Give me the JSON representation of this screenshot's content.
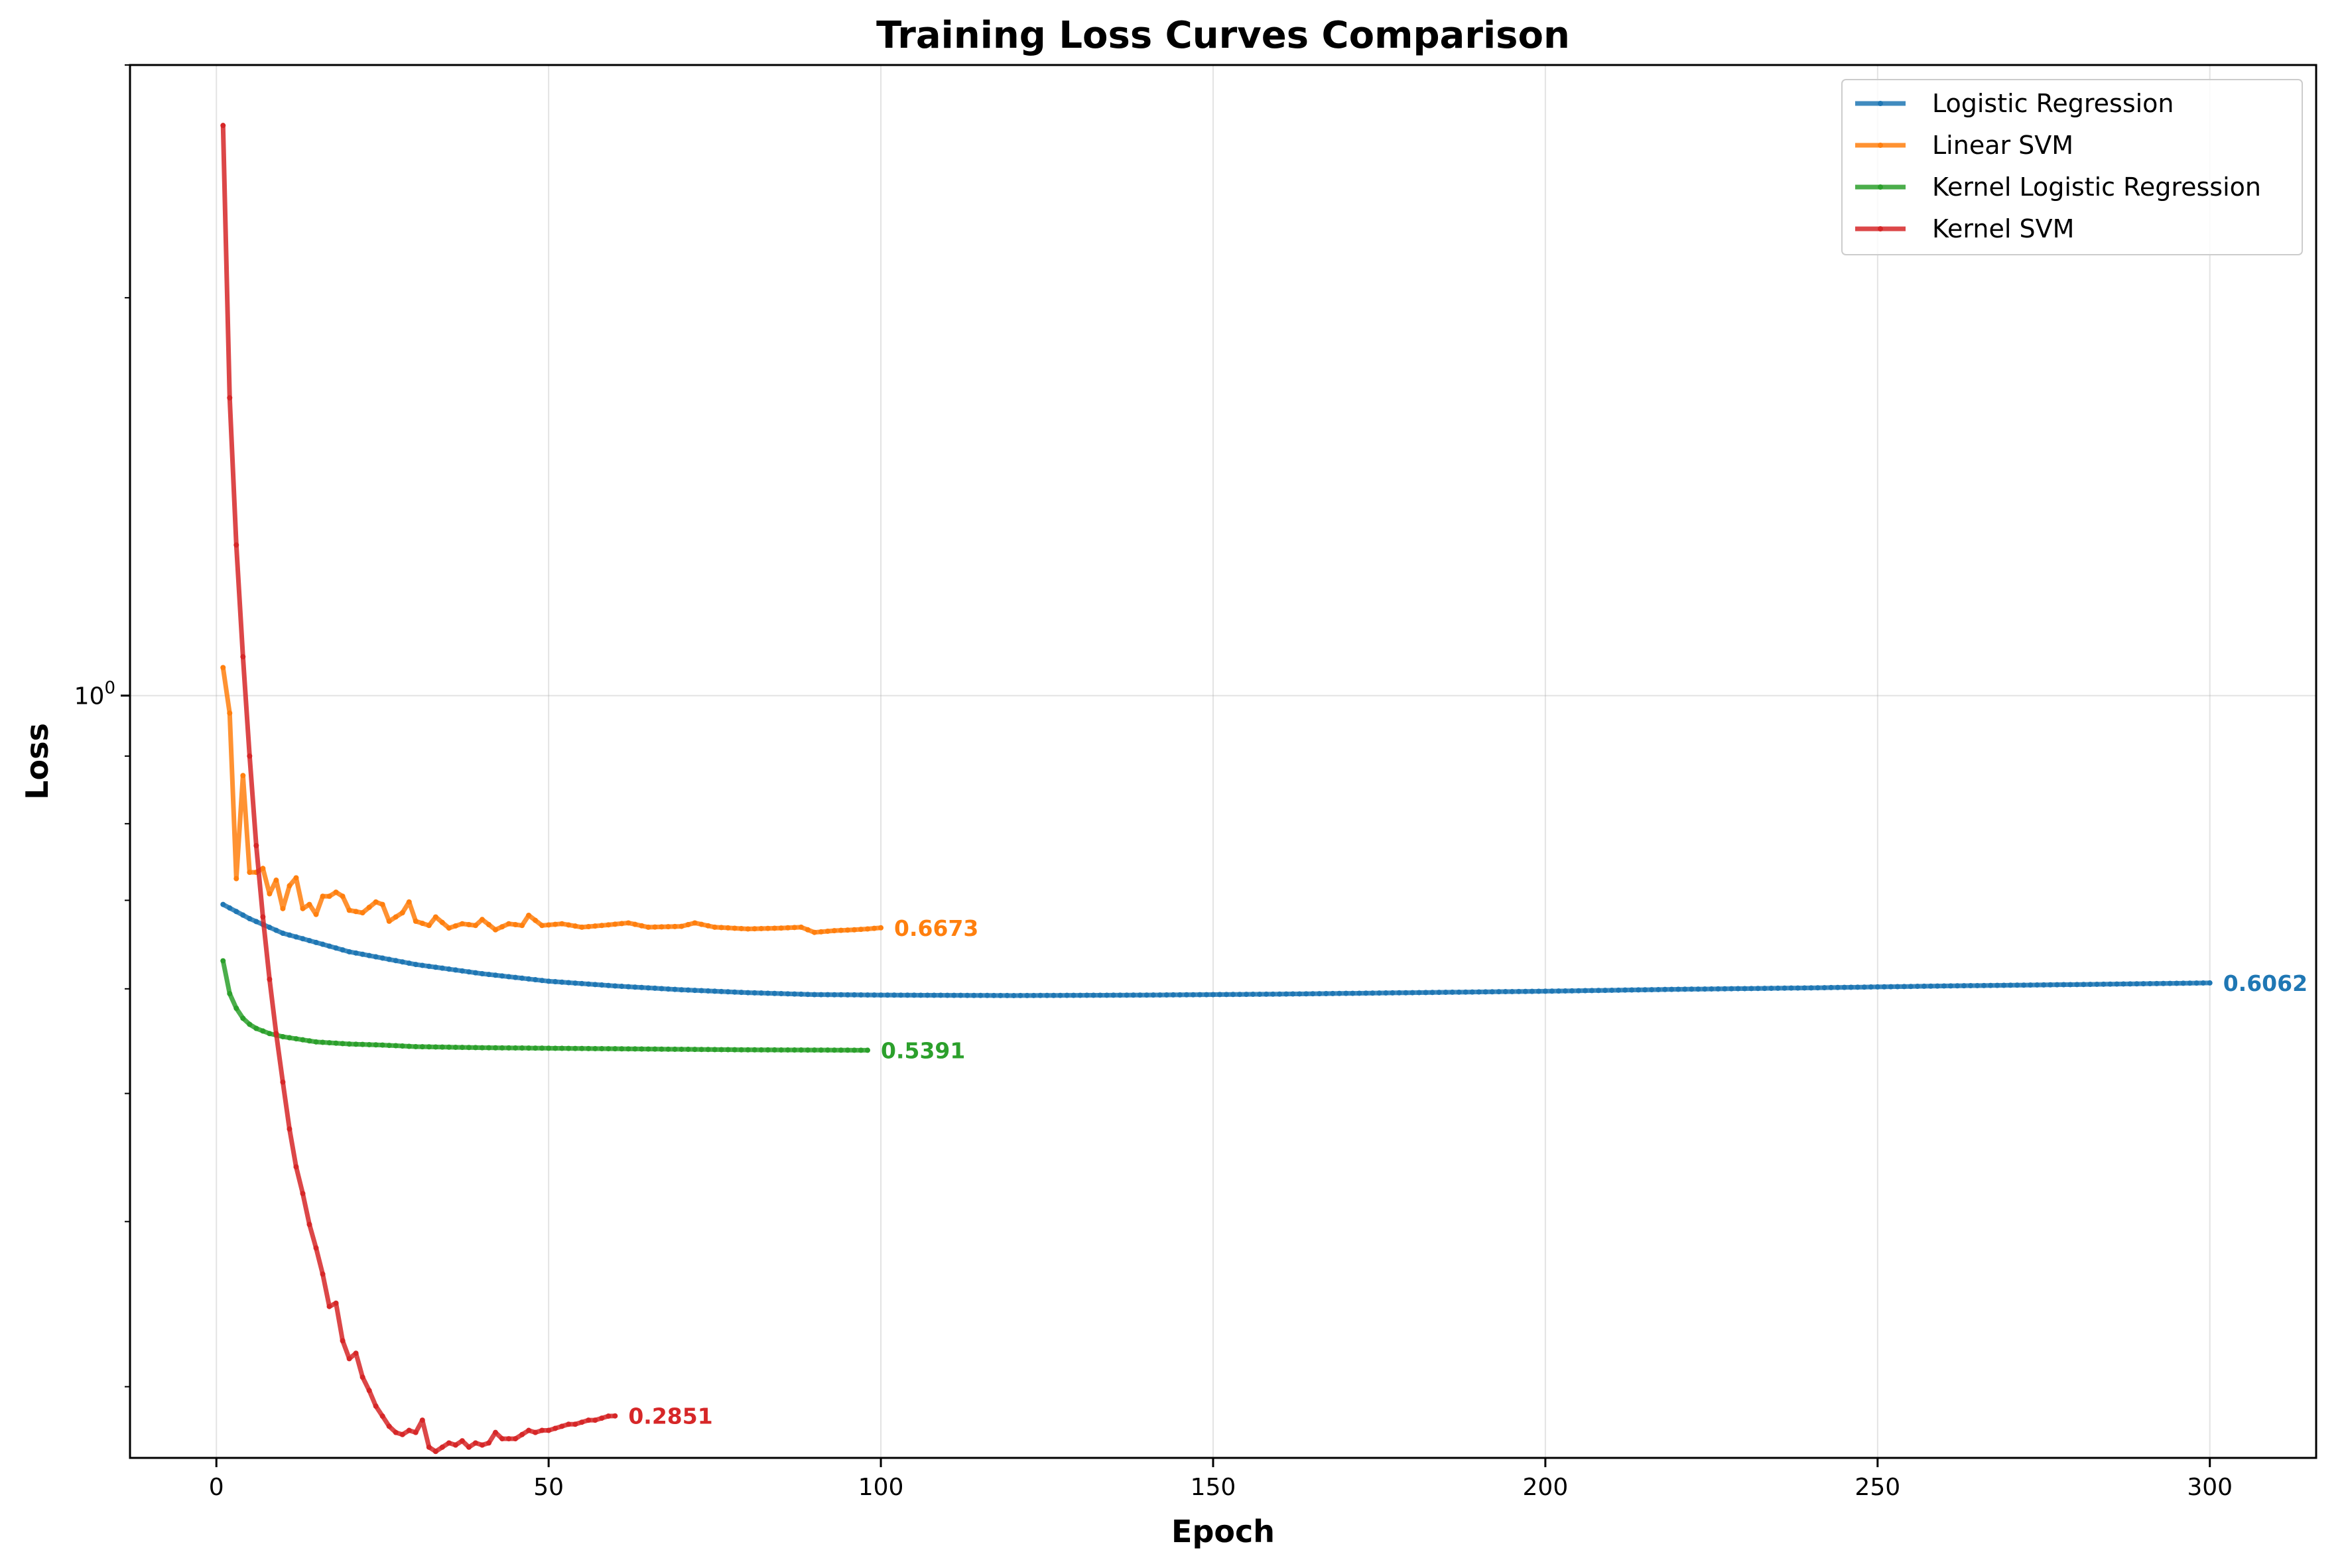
{
  "chart_data": {
    "type": "line",
    "title": "Training Loss Curves Comparison",
    "xlabel": "Epoch",
    "ylabel": "Loss",
    "xlim": [
      -13,
      316
    ],
    "ylim": [
      0.265,
      3.0
    ],
    "yscale": "log",
    "x_ticks": [
      0,
      50,
      100,
      150,
      200,
      250,
      300
    ],
    "y_major_ticks": [
      1.0
    ],
    "y_major_tick_labels": [
      "10⁰"
    ],
    "y_minor_ticks": [
      0.3,
      0.4,
      0.5,
      0.6,
      0.7,
      0.8,
      0.9,
      2.0,
      3.0
    ],
    "grid": true,
    "legend": "upper right",
    "series": [
      {
        "name": "Logistic Regression",
        "color": "#1f77b4",
        "num_points": 300,
        "points": [
          [
            1,
            0.695
          ],
          [
            5,
            0.678
          ],
          [
            10,
            0.661
          ],
          [
            20,
            0.64
          ],
          [
            30,
            0.626
          ],
          [
            40,
            0.616
          ],
          [
            50,
            0.608
          ],
          [
            60,
            0.603
          ],
          [
            70,
            0.599
          ],
          [
            80,
            0.596
          ],
          [
            90,
            0.594
          ],
          [
            100,
            0.5935
          ],
          [
            120,
            0.593
          ],
          [
            140,
            0.5935
          ],
          [
            160,
            0.5945
          ],
          [
            180,
            0.596
          ],
          [
            200,
            0.5975
          ],
          [
            220,
            0.5995
          ],
          [
            240,
            0.601
          ],
          [
            260,
            0.603
          ],
          [
            280,
            0.6045
          ],
          [
            300,
            0.6062
          ]
        ],
        "final_label": "0.6062"
      },
      {
        "name": "Linear SVM",
        "color": "#ff7f0e",
        "num_points": 100,
        "points": [
          [
            1,
            1.05
          ],
          [
            2,
            0.97
          ],
          [
            3,
            0.727
          ],
          [
            4,
            0.87
          ],
          [
            5,
            0.735
          ],
          [
            6,
            0.735
          ],
          [
            7,
            0.74
          ],
          [
            8,
            0.708
          ],
          [
            9,
            0.725
          ],
          [
            10,
            0.69
          ],
          [
            11,
            0.718
          ],
          [
            12,
            0.728
          ],
          [
            13,
            0.69
          ],
          [
            14,
            0.695
          ],
          [
            15,
            0.683
          ],
          [
            16,
            0.705
          ],
          [
            17,
            0.705
          ],
          [
            18,
            0.71
          ],
          [
            19,
            0.705
          ],
          [
            20,
            0.688
          ],
          [
            22,
            0.685
          ],
          [
            24,
            0.698
          ],
          [
            25,
            0.695
          ],
          [
            26,
            0.675
          ],
          [
            28,
            0.685
          ],
          [
            29,
            0.698
          ],
          [
            30,
            0.675
          ],
          [
            32,
            0.67
          ],
          [
            33,
            0.68
          ],
          [
            35,
            0.667
          ],
          [
            37,
            0.672
          ],
          [
            39,
            0.67
          ],
          [
            40,
            0.677
          ],
          [
            42,
            0.665
          ],
          [
            44,
            0.672
          ],
          [
            46,
            0.67
          ],
          [
            47,
            0.682
          ],
          [
            49,
            0.67
          ],
          [
            52,
            0.672
          ],
          [
            55,
            0.668
          ],
          [
            58,
            0.67
          ],
          [
            62,
            0.673
          ],
          [
            65,
            0.668
          ],
          [
            70,
            0.669
          ],
          [
            72,
            0.673
          ],
          [
            75,
            0.668
          ],
          [
            80,
            0.666
          ],
          [
            85,
            0.667
          ],
          [
            88,
            0.668
          ],
          [
            90,
            0.662
          ],
          [
            93,
            0.664
          ],
          [
            96,
            0.665
          ],
          [
            98,
            0.666
          ],
          [
            100,
            0.6673
          ]
        ],
        "final_label": "0.6673"
      },
      {
        "name": "Kernel Logistic Regression",
        "color": "#2ca02c",
        "num_points": 98,
        "points": [
          [
            1,
            0.63
          ],
          [
            2,
            0.595
          ],
          [
            3,
            0.58
          ],
          [
            4,
            0.57
          ],
          [
            5,
            0.564
          ],
          [
            6,
            0.56
          ],
          [
            8,
            0.555
          ],
          [
            10,
            0.552
          ],
          [
            12,
            0.55
          ],
          [
            15,
            0.547
          ],
          [
            20,
            0.545
          ],
          [
            25,
            0.544
          ],
          [
            30,
            0.5425
          ],
          [
            40,
            0.5415
          ],
          [
            50,
            0.541
          ],
          [
            60,
            0.5405
          ],
          [
            70,
            0.54
          ],
          [
            80,
            0.5395
          ],
          [
            90,
            0.5393
          ],
          [
            98,
            0.5391
          ]
        ],
        "final_label": "0.5391"
      },
      {
        "name": "Kernel SVM",
        "color": "#d62728",
        "num_points": 60,
        "points": [
          [
            1,
            2.7
          ],
          [
            2,
            1.68
          ],
          [
            3,
            1.3
          ],
          [
            4,
            1.07
          ],
          [
            5,
            0.9
          ],
          [
            6,
            0.77
          ],
          [
            7,
            0.68
          ],
          [
            8,
            0.61
          ],
          [
            9,
            0.555
          ],
          [
            10,
            0.51
          ],
          [
            11,
            0.47
          ],
          [
            12,
            0.44
          ],
          [
            13,
            0.42
          ],
          [
            14,
            0.398
          ],
          [
            15,
            0.382
          ],
          [
            16,
            0.365
          ],
          [
            17,
            0.345
          ],
          [
            18,
            0.347
          ],
          [
            19,
            0.325
          ],
          [
            20,
            0.315
          ],
          [
            21,
            0.318
          ],
          [
            22,
            0.305
          ],
          [
            23,
            0.298
          ],
          [
            24,
            0.29
          ],
          [
            25,
            0.285
          ],
          [
            26,
            0.28
          ],
          [
            27,
            0.277
          ],
          [
            28,
            0.276
          ],
          [
            29,
            0.278
          ],
          [
            30,
            0.277
          ],
          [
            31,
            0.283
          ],
          [
            32,
            0.27
          ],
          [
            33,
            0.268
          ],
          [
            34,
            0.27
          ],
          [
            35,
            0.272
          ],
          [
            36,
            0.271
          ],
          [
            37,
            0.273
          ],
          [
            38,
            0.27
          ],
          [
            39,
            0.272
          ],
          [
            40,
            0.271
          ],
          [
            41,
            0.272
          ],
          [
            42,
            0.277
          ],
          [
            43,
            0.274
          ],
          [
            44,
            0.274
          ],
          [
            45,
            0.274
          ],
          [
            46,
            0.276
          ],
          [
            47,
            0.278
          ],
          [
            48,
            0.277
          ],
          [
            49,
            0.278
          ],
          [
            50,
            0.278
          ],
          [
            51,
            0.279
          ],
          [
            52,
            0.28
          ],
          [
            53,
            0.281
          ],
          [
            54,
            0.281
          ],
          [
            55,
            0.282
          ],
          [
            56,
            0.283
          ],
          [
            57,
            0.283
          ],
          [
            58,
            0.284
          ],
          [
            59,
            0.285
          ],
          [
            60,
            0.2851
          ]
        ],
        "final_label": "0.2851"
      }
    ]
  }
}
